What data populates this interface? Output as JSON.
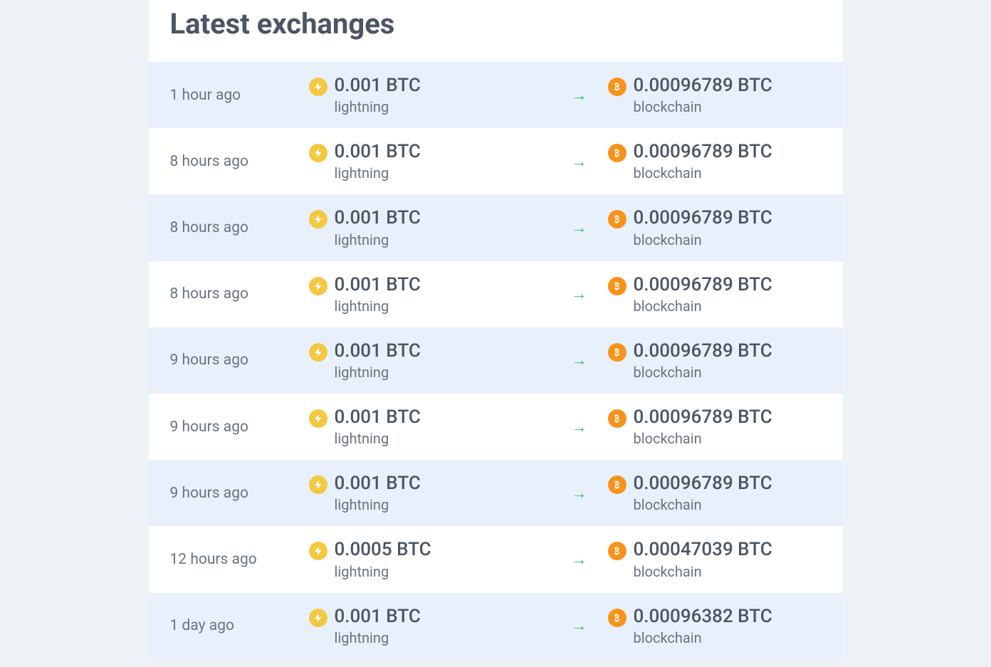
{
  "header": {
    "title": "Latest exchanges"
  },
  "colors": {
    "page_background": "#eef1f6",
    "row_background": "#ffffff",
    "row_alt_background": "#e8f0fb",
    "title_color": "#4b5563",
    "amount_color": "#4b5563",
    "network_color": "#6b7280",
    "time_color": "#6b7280",
    "arrow_color": "#22c55e",
    "lightning_icon_bg": "#f5c842",
    "bitcoin_icon_bg": "#f7931a"
  },
  "typography": {
    "title_fontsize": 40,
    "amount_fontsize": 26,
    "network_fontsize": 20,
    "time_fontsize": 21
  },
  "layout": {
    "container_width": 975,
    "time_col_width": 195,
    "from_col_width": 340,
    "arrow_col_width": 80,
    "row_padding_v": 18,
    "row_padding_h": 30
  },
  "exchanges": [
    {
      "time": "1 hour ago",
      "from_amount": "0.001 BTC",
      "from_network": "lightning",
      "from_icon": "lightning",
      "to_amount": "0.00096789 BTC",
      "to_network": "blockchain",
      "to_icon": "bitcoin"
    },
    {
      "time": "8 hours ago",
      "from_amount": "0.001 BTC",
      "from_network": "lightning",
      "from_icon": "lightning",
      "to_amount": "0.00096789 BTC",
      "to_network": "blockchain",
      "to_icon": "bitcoin"
    },
    {
      "time": "8 hours ago",
      "from_amount": "0.001 BTC",
      "from_network": "lightning",
      "from_icon": "lightning",
      "to_amount": "0.00096789 BTC",
      "to_network": "blockchain",
      "to_icon": "bitcoin"
    },
    {
      "time": "8 hours ago",
      "from_amount": "0.001 BTC",
      "from_network": "lightning",
      "from_icon": "lightning",
      "to_amount": "0.00096789 BTC",
      "to_network": "blockchain",
      "to_icon": "bitcoin"
    },
    {
      "time": "9 hours ago",
      "from_amount": "0.001 BTC",
      "from_network": "lightning",
      "from_icon": "lightning",
      "to_amount": "0.00096789 BTC",
      "to_network": "blockchain",
      "to_icon": "bitcoin"
    },
    {
      "time": "9 hours ago",
      "from_amount": "0.001 BTC",
      "from_network": "lightning",
      "from_icon": "lightning",
      "to_amount": "0.00096789 BTC",
      "to_network": "blockchain",
      "to_icon": "bitcoin"
    },
    {
      "time": "9 hours ago",
      "from_amount": "0.001 BTC",
      "from_network": "lightning",
      "from_icon": "lightning",
      "to_amount": "0.00096789 BTC",
      "to_network": "blockchain",
      "to_icon": "bitcoin"
    },
    {
      "time": "12 hours ago",
      "from_amount": "0.0005 BTC",
      "from_network": "lightning",
      "from_icon": "lightning",
      "to_amount": "0.00047039 BTC",
      "to_network": "blockchain",
      "to_icon": "bitcoin"
    },
    {
      "time": "1 day ago",
      "from_amount": "0.001 BTC",
      "from_network": "lightning",
      "from_icon": "lightning",
      "to_amount": "0.00096382 BTC",
      "to_network": "blockchain",
      "to_icon": "bitcoin"
    }
  ]
}
